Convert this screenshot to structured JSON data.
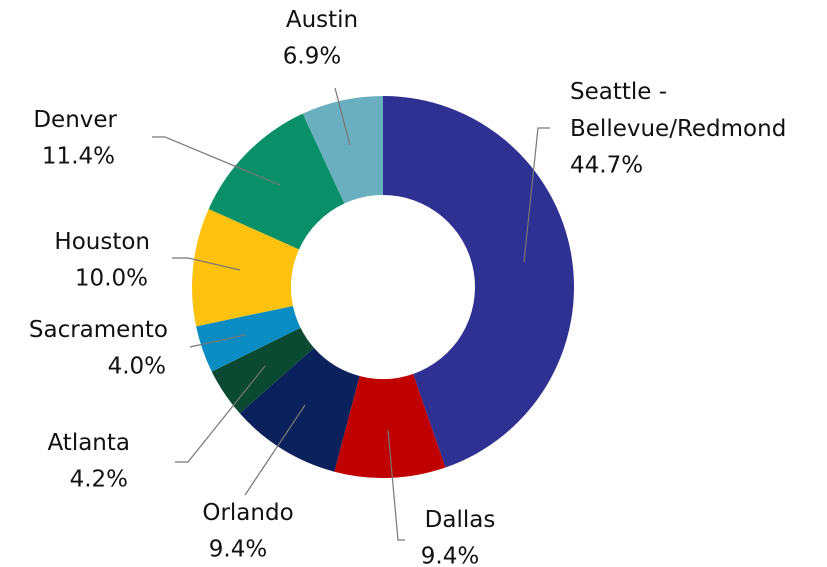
{
  "chart_data": {
    "type": "donut",
    "categories": [
      "Seattle - Bellevue/Redmond",
      "Dallas",
      "Orlando",
      "Atlanta",
      "Sacramento",
      "Houston",
      "Denver",
      "Austin"
    ],
    "values": [
      44.7,
      9.4,
      9.4,
      4.2,
      4.0,
      10.0,
      11.4,
      6.9
    ],
    "value_labels": [
      "44.7%",
      "9.4%",
      "9.4%",
      "4.2%",
      "4.0%",
      "10.0%",
      "11.4%",
      "6.9%"
    ],
    "colors": [
      "#2e3192",
      "#c00000",
      "#0a215c",
      "#0b4a32",
      "#0b8dc4",
      "#fec10d",
      "#0a9068",
      "#6aafc0"
    ]
  }
}
